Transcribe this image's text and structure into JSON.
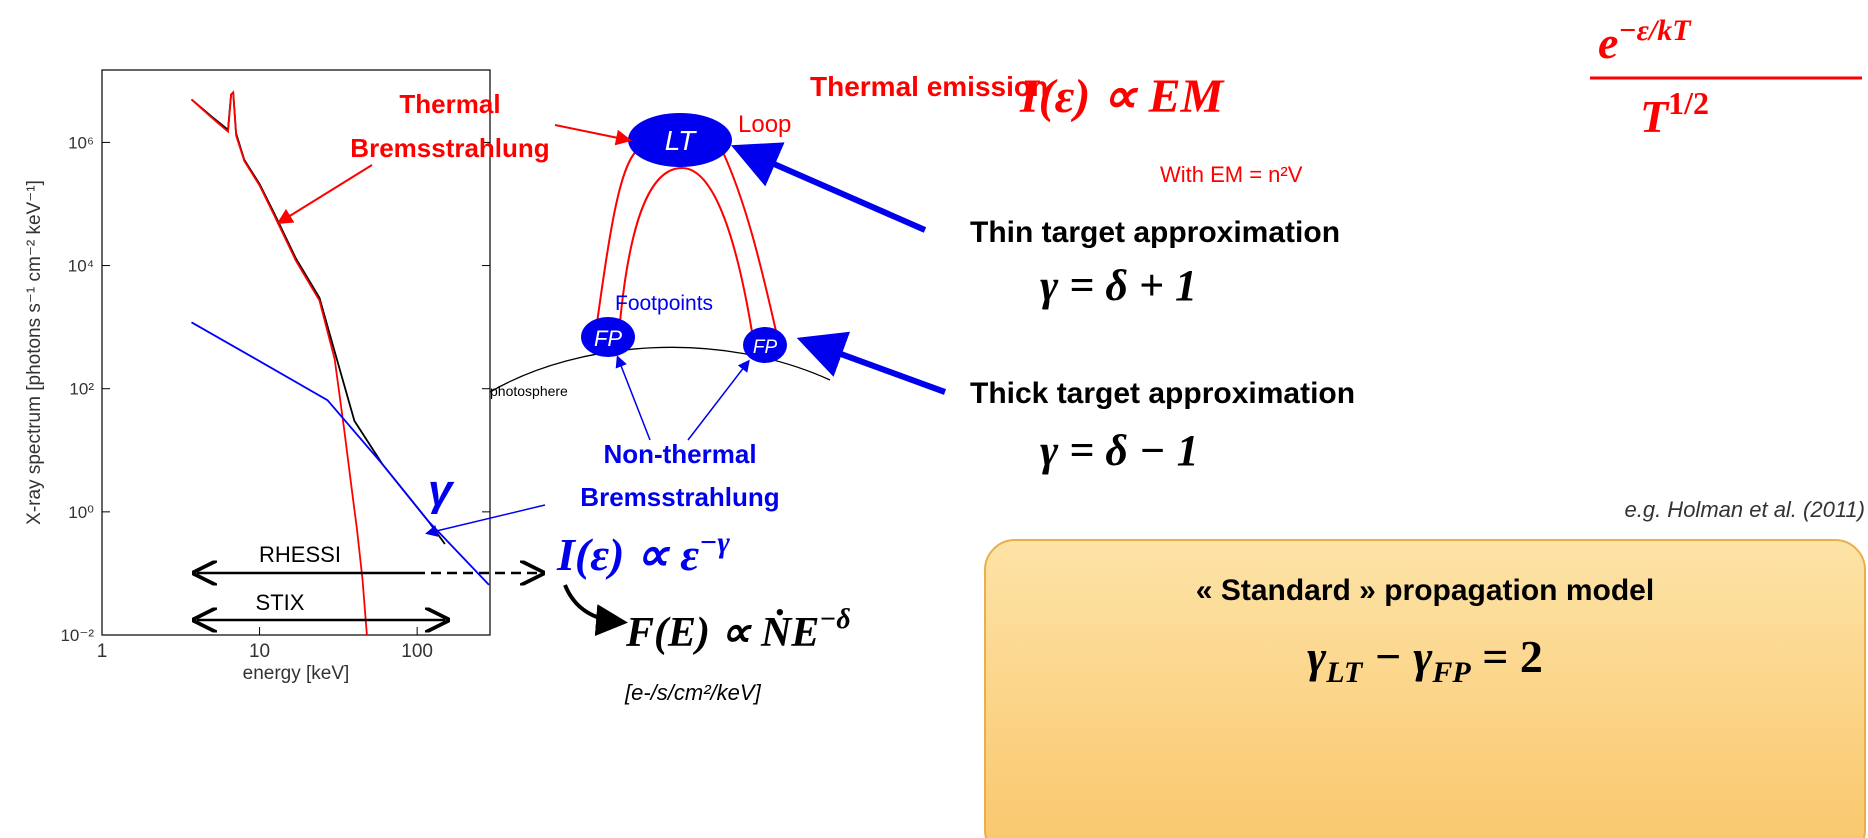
{
  "chart_data": {
    "type": "line",
    "xlabel": "energy [keV]",
    "ylabel": "X-ray spectrum [photons s⁻¹ cm⁻² keV⁻¹]",
    "xlog": true,
    "ylog": true,
    "xlim": [
      1,
      290
    ],
    "ylim": [
      0.01,
      15000000
    ],
    "xticks": [
      1,
      10,
      100
    ],
    "yticks": [
      {
        "value": 0.01,
        "label": "10⁻²"
      },
      {
        "value": 1,
        "label": "10⁰"
      },
      {
        "value": 100,
        "label": "10²"
      },
      {
        "value": 10000,
        "label": "10⁴"
      },
      {
        "value": 1000000,
        "label": "10⁶"
      }
    ],
    "series": [
      {
        "color": "#000000",
        "x": [
          3.7,
          5,
          6.3,
          6.6,
          6.8,
          7.1,
          8,
          10,
          12.4,
          17,
          24,
          30,
          40,
          60,
          118,
          150
        ],
        "values": [
          5000000,
          2600000,
          1600000,
          6000000,
          6500000,
          1400000,
          520000,
          210000,
          70000,
          13000,
          3000,
          400,
          30,
          6,
          0.7,
          0.3
        ]
      },
      {
        "color": "#ff0000",
        "x": [
          3.7,
          5,
          6.3,
          6.6,
          6.8,
          7.1,
          8,
          10,
          12.4,
          17,
          24,
          30,
          34.5,
          38,
          41.6,
          45,
          48
        ],
        "values": [
          5000000,
          2500000,
          1500000,
          6000000,
          6500000,
          1300000,
          500000,
          200000,
          65000,
          12000,
          2700,
          300,
          21,
          3,
          0.5,
          0.08,
          0.01
        ]
      },
      {
        "color": "#0000ff",
        "x": [
          3.7,
          10,
          27,
          60,
          118,
          286
        ],
        "values": [
          1200,
          280,
          65,
          6,
          0.7,
          0.065
        ]
      }
    ],
    "annotations": {
      "rhessi": "RHESSI",
      "stix": "STIX",
      "gamma": "γ"
    }
  },
  "diagram": {
    "thermal_label": [
      "Thermal",
      "Bremsstrahlung"
    ],
    "lt": "LT",
    "loop": "Loop",
    "footpoints": "Footpoints",
    "fp_left": "FP",
    "fp_right": "FP",
    "photosphere": "photosphere",
    "nonthermal_label": [
      "Non-thermal",
      "Bremsstrahlung"
    ]
  },
  "equations": {
    "thermal_title": "Thermal emission",
    "thermal_lhs": "I(ε) ∝ EM",
    "thermal_num": "e",
    "thermal_num_exp": "−ε/kT",
    "thermal_den": "T",
    "thermal_den_exp": "1/2",
    "em_def": "With EM = n²V",
    "thin": "Thin target approximation",
    "thin_eq": "γ = δ + 1",
    "thick": "Thick target approximation",
    "thick_eq": "γ = δ − 1",
    "reference": "e.g. Holman et al. (2011)",
    "photon": "I(ε) ∝ ε",
    "photon_exp": "−γ",
    "electron": "F(E) ∝ ṄE",
    "electron_exp": "−δ",
    "electron_units": "[e-/s/cm²/keV]",
    "box_title": "« Standard » propagation model",
    "box_eq": [
      "γ",
      "LT",
      " − γ",
      "FP",
      " = 2"
    ]
  }
}
